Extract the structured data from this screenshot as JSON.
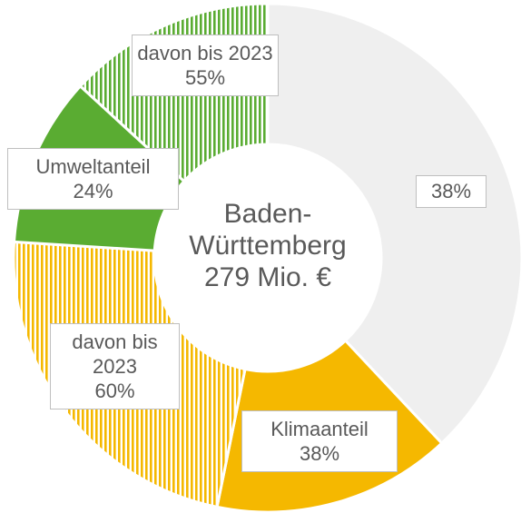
{
  "chart_data": {
    "type": "donut",
    "center_label": "Baden-Württemberg",
    "total_label": "279 Mio. €",
    "categories": [
      null,
      "Klimaanteil",
      "Umweltanteil"
    ],
    "values": [
      38,
      38,
      24
    ],
    "value_labels": [
      "38%",
      "38%",
      "24%"
    ],
    "colors": [
      "#efefef",
      "#f5b800",
      "#5aac32"
    ],
    "sub_labels": [
      null,
      "davon bis 2023",
      "davon bis 2023"
    ],
    "sub_values": [
      null,
      60,
      55
    ],
    "sub_value_labels": [
      null,
      "60%",
      "55%"
    ]
  }
}
